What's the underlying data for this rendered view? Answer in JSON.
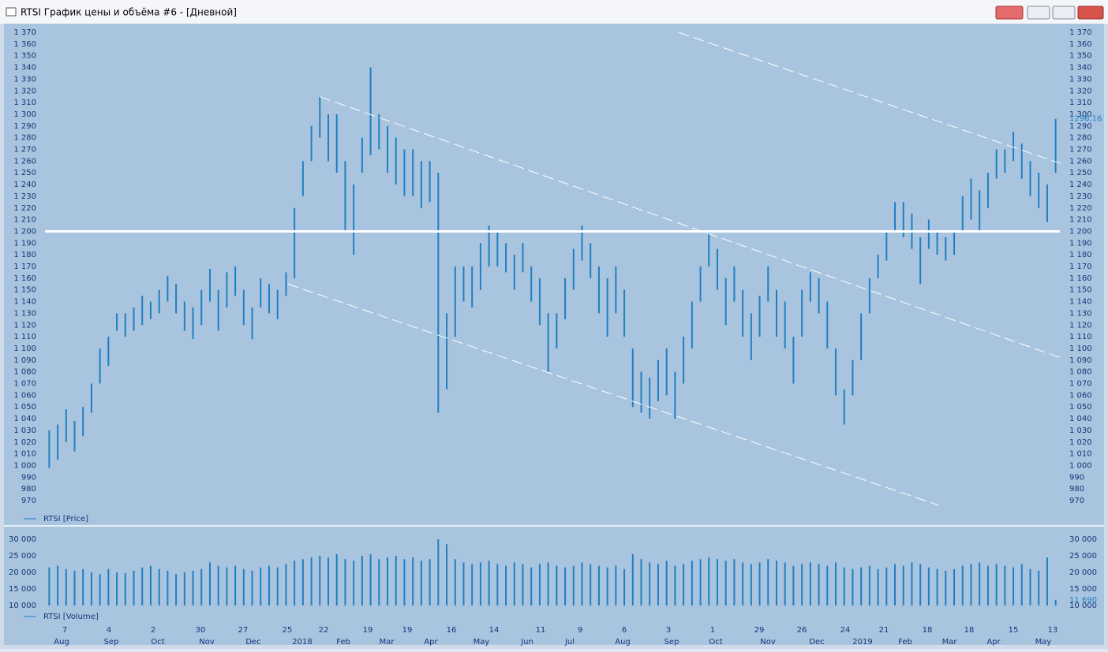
{
  "window_title": "RTSI График цены и объёма #6 - [Дневной]",
  "chart_data": [
    {
      "type": "range-bar",
      "legend": "RTSI [Price]",
      "color": "#1f7fc4",
      "low": [
        998,
        1005,
        1020,
        1012,
        1025,
        1045,
        1070,
        1085,
        1115,
        1110,
        1115,
        1120,
        1125,
        1130,
        1140,
        1130,
        1115,
        1108,
        1120,
        1140,
        1115,
        1135,
        1145,
        1120,
        1108,
        1135,
        1130,
        1125,
        1145,
        1160,
        1230,
        1260,
        1280,
        1260,
        1250,
        1200,
        1180,
        1250,
        1265,
        1270,
        1250,
        1240,
        1230,
        1230,
        1220,
        1225,
        1045,
        1065,
        1110,
        1140,
        1135,
        1150,
        1170,
        1170,
        1165,
        1150,
        1165,
        1140,
        1120,
        1080,
        1100,
        1125,
        1150,
        1175,
        1160,
        1130,
        1110,
        1130,
        1110,
        1050,
        1045,
        1040,
        1055,
        1060,
        1040,
        1070,
        1100,
        1140,
        1170,
        1150,
        1120,
        1140,
        1110,
        1090,
        1110,
        1140,
        1110,
        1100,
        1070,
        1110,
        1140,
        1130,
        1100,
        1060,
        1035,
        1060,
        1090,
        1130,
        1160,
        1175,
        1200,
        1195,
        1185,
        1155,
        1185,
        1180,
        1175,
        1180,
        1200,
        1210,
        1200,
        1220,
        1245,
        1250,
        1260,
        1245,
        1230,
        1220,
        1208,
        1250
      ],
      "high": [
        1030,
        1035,
        1048,
        1038,
        1050,
        1070,
        1100,
        1110,
        1130,
        1130,
        1135,
        1145,
        1140,
        1150,
        1162,
        1155,
        1140,
        1135,
        1150,
        1168,
        1150,
        1165,
        1170,
        1150,
        1135,
        1160,
        1155,
        1150,
        1165,
        1220,
        1260,
        1290,
        1315,
        1300,
        1300,
        1260,
        1240,
        1280,
        1340,
        1300,
        1290,
        1280,
        1270,
        1270,
        1260,
        1260,
        1250,
        1130,
        1170,
        1170,
        1170,
        1190,
        1205,
        1200,
        1190,
        1180,
        1190,
        1170,
        1160,
        1130,
        1130,
        1160,
        1185,
        1205,
        1190,
        1170,
        1160,
        1170,
        1150,
        1100,
        1080,
        1075,
        1090,
        1100,
        1080,
        1110,
        1140,
        1170,
        1200,
        1185,
        1160,
        1170,
        1150,
        1130,
        1145,
        1170,
        1150,
        1140,
        1110,
        1150,
        1165,
        1160,
        1140,
        1100,
        1065,
        1090,
        1130,
        1160,
        1180,
        1200,
        1225,
        1225,
        1215,
        1195,
        1210,
        1200,
        1195,
        1200,
        1230,
        1245,
        1235,
        1250,
        1270,
        1270,
        1285,
        1275,
        1260,
        1250,
        1240,
        1296
      ],
      "last_value": {
        "value": 1296.16,
        "label": "1296,16"
      },
      "ylim": [
        970,
        1370
      ],
      "yticks": [
        {
          "value": 970,
          "label": "970"
        },
        {
          "value": 980,
          "label": "980"
        },
        {
          "value": 990,
          "label": "990"
        },
        {
          "value": 1000,
          "label": "1 000"
        },
        {
          "value": 1010,
          "label": "1 010"
        },
        {
          "value": 1020,
          "label": "1 020"
        },
        {
          "value": 1030,
          "label": "1 030"
        },
        {
          "value": 1040,
          "label": "1 040"
        },
        {
          "value": 1050,
          "label": "1 050"
        },
        {
          "value": 1060,
          "label": "1 060"
        },
        {
          "value": 1070,
          "label": "1 070"
        },
        {
          "value": 1080,
          "label": "1 080"
        },
        {
          "value": 1090,
          "label": "1 090"
        },
        {
          "value": 1100,
          "label": "1 100"
        },
        {
          "value": 1110,
          "label": "1 110"
        },
        {
          "value": 1120,
          "label": "1 120"
        },
        {
          "value": 1130,
          "label": "1 130"
        },
        {
          "value": 1140,
          "label": "1 140"
        },
        {
          "value": 1150,
          "label": "1 150"
        },
        {
          "value": 1160,
          "label": "1 160"
        },
        {
          "value": 1170,
          "label": "1 170"
        },
        {
          "value": 1180,
          "label": "1 180"
        },
        {
          "value": 1190,
          "label": "1 190"
        },
        {
          "value": 1200,
          "label": "1 200"
        },
        {
          "value": 1210,
          "label": "1 210"
        },
        {
          "value": 1220,
          "label": "1 220"
        },
        {
          "value": 1230,
          "label": "1 230"
        },
        {
          "value": 1240,
          "label": "1 240"
        },
        {
          "value": 1250,
          "label": "1 250"
        },
        {
          "value": 1260,
          "label": "1 260"
        },
        {
          "value": 1270,
          "label": "1 270"
        },
        {
          "value": 1280,
          "label": "1 280"
        },
        {
          "value": 1290,
          "label": "1 290"
        },
        {
          "value": 1300,
          "label": "1 300"
        },
        {
          "value": 1310,
          "label": "1 310"
        },
        {
          "value": 1320,
          "label": "1 320"
        },
        {
          "value": 1330,
          "label": "1 330"
        },
        {
          "value": 1340,
          "label": "1 340"
        },
        {
          "value": 1350,
          "label": "1 350"
        },
        {
          "value": 1360,
          "label": "1 360"
        },
        {
          "value": 1370,
          "label": "1 370"
        }
      ],
      "level_line": 1200,
      "trend_lines": [
        {
          "start": [
            32,
            1315
          ],
          "end": [
            119.6,
            1092
          ]
        },
        {
          "start": [
            28.2,
            1155
          ],
          "end": [
            105.2,
            966
          ]
        },
        {
          "start": [
            74.4,
            1370
          ],
          "end": [
            119.6,
            1258
          ]
        }
      ]
    },
    {
      "type": "bar",
      "legend": "RTSI [Volume]",
      "color": "#1f7fc4",
      "values": [
        21500,
        22000,
        21000,
        20500,
        21000,
        20000,
        19500,
        21000,
        20000,
        19800,
        20500,
        21500,
        22000,
        21000,
        20500,
        19500,
        20000,
        20500,
        21000,
        23000,
        22000,
        21500,
        22000,
        21000,
        20500,
        21500,
        22000,
        21500,
        22500,
        23500,
        24000,
        24500,
        25000,
        24500,
        25500,
        24000,
        23500,
        25000,
        25500,
        24000,
        24500,
        25000,
        24000,
        24500,
        23500,
        24000,
        30000,
        28500,
        24000,
        23000,
        22500,
        23000,
        23500,
        22500,
        22000,
        23000,
        22500,
        21500,
        22500,
        23000,
        22000,
        21500,
        22000,
        23000,
        22500,
        22000,
        21500,
        22000,
        21000,
        25500,
        24000,
        23000,
        22500,
        23500,
        22000,
        22500,
        23500,
        24000,
        24500,
        24000,
        23500,
        24000,
        23000,
        22500,
        23000,
        24000,
        23500,
        23000,
        22000,
        22500,
        23000,
        22500,
        22000,
        23000,
        21500,
        21000,
        21500,
        22000,
        21000,
        21500,
        22500,
        22000,
        23000,
        22500,
        21500,
        21000,
        20500,
        21000,
        22000,
        22500,
        23000,
        22000,
        22500,
        22000,
        21500,
        22500,
        21000,
        20500,
        24500,
        11690
      ],
      "last_value": {
        "value": 11690,
        "label": "11 690"
      },
      "ylim": [
        10000,
        30000
      ],
      "yticks": [
        {
          "value": 10000,
          "label": "10 000"
        },
        {
          "value": 15000,
          "label": "15 000"
        },
        {
          "value": 20000,
          "label": "20 000"
        },
        {
          "value": 25000,
          "label": "25 000"
        },
        {
          "value": 30000,
          "label": "30 000"
        }
      ],
      "x_day_labels": [
        "7",
        "4",
        "2",
        "30",
        "27",
        "25",
        "22",
        "19",
        "19",
        "16",
        "14",
        "11",
        "9",
        "6",
        "3",
        "1",
        "29",
        "26",
        "24",
        "21",
        "18",
        "18",
        "15",
        "13"
      ],
      "x_month_labels": [
        "Aug",
        "Sep",
        "Oct",
        "Nov",
        "Dec",
        "2018",
        "Feb",
        "Mar",
        "Apr",
        "May",
        "Jun",
        "Jul",
        "Aug",
        "Sep",
        "Oct",
        "Nov",
        "Dec",
        "2019",
        "Feb",
        "Mar",
        "Apr",
        "May"
      ]
    }
  ]
}
